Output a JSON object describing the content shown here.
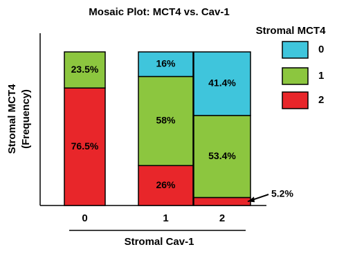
{
  "chart_data": {
    "type": "stacked_bar",
    "title": "Mosaic Plot: MCT4 vs. Cav-1",
    "x_label": "Stromal Cav-1",
    "y_label": [
      "Stromal MCT4",
      "(Frequency)"
    ],
    "legend_title": "Stromal MCT4",
    "categories": [
      "0",
      "1",
      "2"
    ],
    "ylim": [
      0,
      100
    ],
    "series": [
      {
        "name": "2",
        "color": "#e8262a",
        "values": [
          76.5,
          26,
          5.2
        ],
        "value_labels": [
          "76.5%",
          "26%",
          "5.2%"
        ]
      },
      {
        "name": "1",
        "color": "#8cc63f",
        "values": [
          23.5,
          58,
          53.4
        ],
        "value_labels": [
          "23.5%",
          "58%",
          "53.4%"
        ]
      },
      {
        "name": "0",
        "color": "#3fc5dc",
        "values": [
          0,
          16,
          41.4
        ],
        "value_labels": [
          null,
          "16%",
          "41.4%"
        ]
      }
    ]
  }
}
